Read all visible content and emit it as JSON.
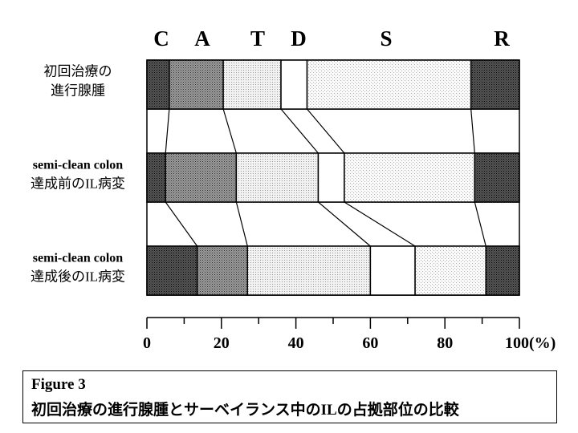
{
  "chart_data": {
    "type": "bar",
    "stacked": true,
    "orientation": "horizontal",
    "segment_labels": [
      "C",
      "A",
      "T",
      "D",
      "S",
      "R"
    ],
    "categories": [
      [
        "初回治療の",
        "進行腺腫"
      ],
      [
        "semi-clean colon",
        "達成前のIL病変"
      ],
      [
        "semi-clean colon",
        "達成後のIL病変"
      ]
    ],
    "series": [
      {
        "name": "C",
        "values": [
          6,
          5,
          13.5
        ]
      },
      {
        "name": "A",
        "values": [
          14.5,
          19,
          13.5
        ]
      },
      {
        "name": "T",
        "values": [
          15.5,
          22,
          33
        ]
      },
      {
        "name": "D",
        "values": [
          7,
          7,
          12
        ]
      },
      {
        "name": "S",
        "values": [
          44,
          35,
          19
        ]
      },
      {
        "name": "R",
        "values": [
          13,
          12,
          9
        ]
      }
    ],
    "x_ticks": [
      "0",
      "20",
      "40",
      "60",
      "80",
      "100(%)"
    ],
    "xlim": [
      0,
      100
    ],
    "connector_lines": true,
    "colors": {
      "C": "#3a3a3a",
      "A": "#6e6e6e",
      "T": "#dcdcdc",
      "D": "#ffffff",
      "S": "#e6e6e6",
      "R": "#3a3a3a",
      "border": "#000000"
    }
  },
  "caption": {
    "label": "Figure 3",
    "title": "初回治療の進行腺腫とサーベイランス中のILの占拠部位の比較"
  }
}
